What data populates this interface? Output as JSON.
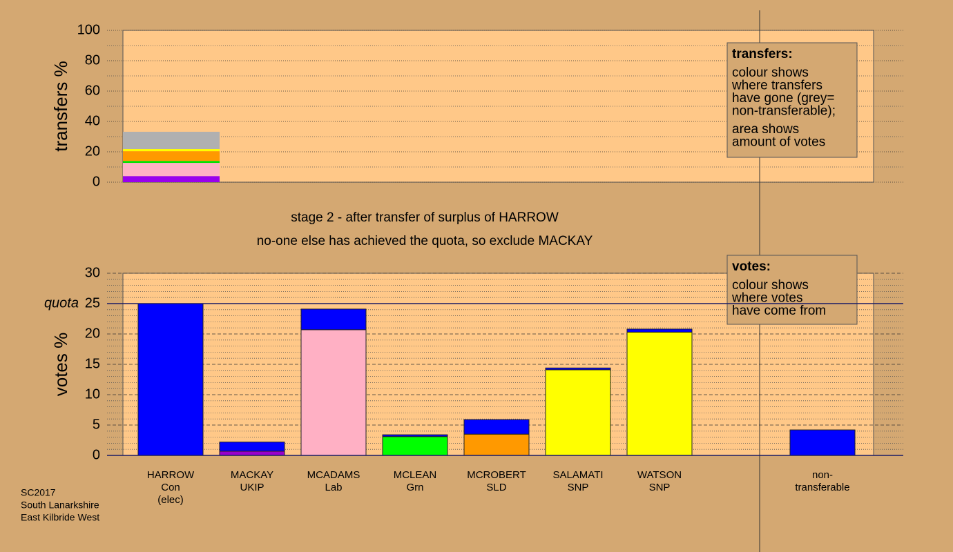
{
  "chart_data": [
    {
      "type": "stacked-bar",
      "ylabel": "transfers %",
      "ylim": [
        0,
        100
      ],
      "yticks": [
        0,
        20,
        40,
        60,
        80,
        100
      ],
      "minor_yticks": [
        10,
        30,
        50,
        70,
        90
      ],
      "series": [
        {
          "color": "#9900ee",
          "values": [
            4
          ]
        },
        {
          "color": "#ffb0c4",
          "values": [
            8.7
          ]
        },
        {
          "color": "#00e000",
          "values": [
            1.3
          ]
        },
        {
          "color": "#ff9900",
          "values": [
            6.4
          ]
        },
        {
          "color": "#ffff00",
          "values": [
            1.4
          ]
        },
        {
          "color": "#b0b0b0",
          "values": [
            11.4
          ]
        }
      ],
      "legend": {
        "title": "transfers:",
        "lines": [
          "colour shows",
          "where transfers",
          "have gone (grey=",
          "non-transferable);"
        ],
        "lines2": [
          "area shows",
          "amount of votes"
        ]
      }
    },
    {
      "type": "stacked-bar",
      "ylabel": "votes %",
      "titles": [
        "stage 2 - after transfer of surplus of HARROW",
        "no-one else has achieved the quota, so exclude MACKAY"
      ],
      "ylim": [
        0,
        30
      ],
      "yticks": [
        0,
        5,
        10,
        15,
        20,
        25,
        30
      ],
      "minor_yticks": [
        1,
        2,
        3,
        4,
        6,
        7,
        8,
        9,
        11,
        12,
        13,
        14,
        16,
        17,
        18,
        19,
        21,
        22,
        23,
        24,
        26,
        27,
        28,
        29
      ],
      "quota": {
        "value": 25,
        "label": "quota"
      },
      "categories": [
        [
          "HARROW",
          "Con",
          "(elec)"
        ],
        [
          "MACKAY",
          "UKIP"
        ],
        [
          "MCADAMS",
          "Lab"
        ],
        [
          "MCLEAN",
          "Grn"
        ],
        [
          "MCROBERT",
          "SLD"
        ],
        [
          "SALAMATI",
          "SNP"
        ],
        [
          "WATSON",
          "SNP"
        ],
        null,
        [
          "non-",
          "transferable"
        ]
      ],
      "series": [
        {
          "values": [
            25,
            0.7,
            20.7,
            3.1,
            3.5,
            14.1,
            20.3,
            null,
            null
          ],
          "colors": [
            "#0000ff",
            "#9900cc",
            "#ffb0c4",
            "#00ff00",
            "#ff9900",
            "#ffff00",
            "#ffff00",
            null,
            null
          ]
        },
        {
          "color": "#0000ff",
          "values": [
            null,
            1.5,
            3.4,
            0.3,
            2.4,
            0.3,
            0.5,
            null,
            4.2
          ]
        }
      ],
      "legend": {
        "title": "votes:",
        "lines": [
          "colour shows",
          "where votes",
          "have come from"
        ]
      },
      "footer": [
        "SC2017",
        "South Lanarkshire",
        "East Kilbride West"
      ]
    }
  ]
}
